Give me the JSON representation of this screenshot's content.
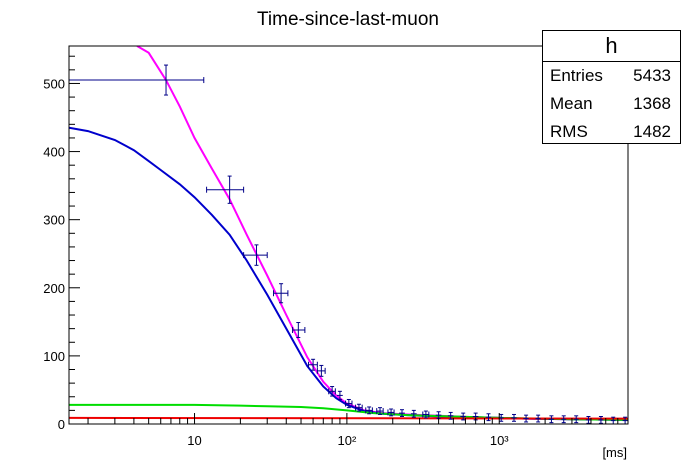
{
  "chart_data": {
    "type": "scatter",
    "title": "Time-since-last-muon",
    "xlabel": "[ms]",
    "ylabel": "",
    "xscale": "log",
    "xlim": [
      1.5,
      7000
    ],
    "ylim": [
      0,
      555
    ],
    "x_tick_labels": [
      "10",
      "10²",
      "10³"
    ],
    "y_ticks": [
      0,
      100,
      200,
      300,
      400,
      500
    ],
    "grid": false,
    "points": [
      {
        "x": 6.5,
        "y": 505,
        "xerr": [
          1.5,
          11.5
        ],
        "yerr": 22
      },
      {
        "x": 17,
        "y": 344,
        "xerr": [
          12,
          21
        ],
        "yerr": 20
      },
      {
        "x": 25.5,
        "y": 248,
        "xerr": [
          21,
          30
        ],
        "yerr": 15
      },
      {
        "x": 37,
        "y": 192,
        "xerr": [
          33,
          41
        ],
        "yerr": 14
      },
      {
        "x": 48,
        "y": 138,
        "xerr": [
          44,
          53
        ],
        "yerr": 11
      },
      {
        "x": 60,
        "y": 87,
        "xerr": [
          56,
          64
        ],
        "yerr": 8
      },
      {
        "x": 68,
        "y": 78,
        "xerr": [
          64,
          72
        ],
        "yerr": 8
      },
      {
        "x": 80,
        "y": 48,
        "xerr": [
          76,
          84
        ],
        "yerr": 7
      },
      {
        "x": 90,
        "y": 42,
        "xerr": [
          86,
          94
        ],
        "yerr": 6
      },
      {
        "x": 103,
        "y": 30,
        "xerr": [
          98,
          108
        ],
        "yerr": 6
      },
      {
        "x": 120,
        "y": 24,
        "xerr": [
          114,
          126
        ],
        "yerr": 5
      },
      {
        "x": 140,
        "y": 20,
        "xerr": [
          133,
          147
        ],
        "yerr": 5
      },
      {
        "x": 165,
        "y": 19,
        "xerr": [
          157,
          173
        ],
        "yerr": 5
      },
      {
        "x": 195,
        "y": 17,
        "xerr": [
          186,
          204
        ],
        "yerr": 5
      },
      {
        "x": 230,
        "y": 16,
        "xerr": [
          220,
          240
        ],
        "yerr": 5
      },
      {
        "x": 275,
        "y": 15,
        "xerr": [
          263,
          287
        ],
        "yerr": 5
      },
      {
        "x": 330,
        "y": 14,
        "xerr": [
          315,
          345
        ],
        "yerr": 5
      },
      {
        "x": 400,
        "y": 13,
        "xerr": [
          383,
          417
        ],
        "yerr": 5
      },
      {
        "x": 480,
        "y": 12,
        "xerr": [
          460,
          500
        ],
        "yerr": 5
      },
      {
        "x": 580,
        "y": 11,
        "xerr": [
          556,
          604
        ],
        "yerr": 5
      },
      {
        "x": 700,
        "y": 11,
        "xerr": [
          670,
          730
        ],
        "yerr": 5
      },
      {
        "x": 850,
        "y": 10,
        "xerr": [
          815,
          885
        ],
        "yerr": 5
      },
      {
        "x": 1030,
        "y": 9,
        "xerr": [
          990,
          1070
        ],
        "yerr": 5
      },
      {
        "x": 1250,
        "y": 9,
        "xerr": [
          1200,
          1300
        ],
        "yerr": 5
      },
      {
        "x": 1500,
        "y": 8,
        "xerr": [
          1440,
          1560
        ],
        "yerr": 5
      },
      {
        "x": 1800,
        "y": 8,
        "xerr": [
          1730,
          1870
        ],
        "yerr": 5
      },
      {
        "x": 2200,
        "y": 7,
        "xerr": [
          2110,
          2290
        ],
        "yerr": 5
      },
      {
        "x": 2650,
        "y": 7,
        "xerr": [
          2550,
          2750
        ],
        "yerr": 5
      },
      {
        "x": 3200,
        "y": 7,
        "xerr": [
          3080,
          3320
        ],
        "yerr": 5
      },
      {
        "x": 3850,
        "y": 6,
        "xerr": [
          3700,
          4000
        ],
        "yerr": 5
      },
      {
        "x": 4650,
        "y": 6,
        "xerr": [
          4480,
          4820
        ],
        "yerr": 5
      },
      {
        "x": 5600,
        "y": 5,
        "xerr": [
          5400,
          5800
        ],
        "yerr": 5
      },
      {
        "x": 6700,
        "y": 5,
        "xerr": [
          6450,
          6950
        ],
        "yerr": 5
      }
    ],
    "curves": [
      {
        "color": "#ff00ff",
        "points": [
          [
            4.2,
            555
          ],
          [
            5,
            545
          ],
          [
            6.5,
            505
          ],
          [
            8,
            466
          ],
          [
            10,
            420
          ],
          [
            13,
            375
          ],
          [
            17,
            330
          ],
          [
            22,
            278
          ],
          [
            30,
            218
          ],
          [
            40,
            160
          ],
          [
            55,
            98
          ],
          [
            70,
            62
          ],
          [
            85,
            42
          ],
          [
            100,
            30
          ],
          [
            130,
            20
          ],
          [
            170,
            16
          ],
          [
            250,
            14
          ],
          [
            400,
            12
          ],
          [
            700,
            10
          ],
          [
            1500,
            8
          ],
          [
            3000,
            7
          ],
          [
            7000,
            6
          ]
        ]
      },
      {
        "color": "#0000cc",
        "points": [
          [
            1.5,
            435
          ],
          [
            2,
            430
          ],
          [
            3,
            417
          ],
          [
            4,
            402
          ],
          [
            5,
            386
          ],
          [
            6,
            373
          ],
          [
            8,
            352
          ],
          [
            10,
            333
          ],
          [
            13,
            307
          ],
          [
            17,
            278
          ],
          [
            22,
            240
          ],
          [
            30,
            190
          ],
          [
            40,
            140
          ],
          [
            55,
            85
          ],
          [
            70,
            55
          ],
          [
            85,
            38
          ],
          [
            100,
            28
          ],
          [
            130,
            19
          ],
          [
            170,
            15
          ],
          [
            250,
            13
          ],
          [
            400,
            11
          ],
          [
            700,
            10
          ],
          [
            1500,
            8
          ],
          [
            3000,
            7
          ],
          [
            7000,
            6
          ]
        ]
      },
      {
        "color": "#00dd00",
        "points": [
          [
            1.5,
            28
          ],
          [
            10,
            28
          ],
          [
            20,
            27
          ],
          [
            30,
            26
          ],
          [
            50,
            25
          ],
          [
            70,
            23
          ],
          [
            100,
            20
          ],
          [
            150,
            16
          ],
          [
            250,
            13
          ],
          [
            500,
            11
          ],
          [
            1000,
            9
          ],
          [
            3000,
            7
          ],
          [
            7000,
            6
          ]
        ]
      },
      {
        "color": "#ee0000",
        "points": [
          [
            1.5,
            9
          ],
          [
            7000,
            8
          ]
        ]
      }
    ]
  },
  "stats": {
    "title": "h",
    "rows": [
      {
        "label": "Entries",
        "value": "5433"
      },
      {
        "label": "Mean",
        "value": "1368"
      },
      {
        "label": "RMS",
        "value": "1482"
      }
    ]
  }
}
